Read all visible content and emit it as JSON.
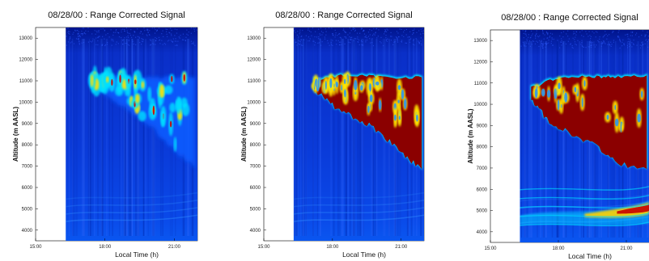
{
  "chart_data": [
    {
      "type": "heatmap",
      "title": "08/28/00 : Range Corrected Signal",
      "xlabel": "Local Time (h)",
      "ylabel": "Altitude (m AASL)",
      "x_ticks": [
        "15:00",
        "18:00",
        "21:00"
      ],
      "y_ticks": [
        4000,
        5000,
        6000,
        7000,
        8000,
        9000,
        10000,
        11000,
        12000,
        13000
      ],
      "xlim": [
        15,
        22
      ],
      "ylim": [
        3500,
        13500
      ],
      "data_start": 16.3,
      "colormap": "jet",
      "cloud": {
        "top": [
          [
            17.3,
            11200
          ],
          [
            18.5,
            11250
          ],
          [
            19.5,
            11200
          ],
          [
            20.5,
            11150
          ],
          [
            21.9,
            11200
          ]
        ],
        "bottom": [
          [
            17.3,
            10800
          ],
          [
            18.2,
            10200
          ],
          [
            19.0,
            9700
          ],
          [
            20.0,
            8800
          ],
          [
            21.0,
            7800
          ],
          [
            21.9,
            6900
          ]
        ]
      },
      "intensity": "low"
    },
    {
      "type": "heatmap",
      "title": "08/28/00 : Range Corrected Signal",
      "xlabel": "Local Time (h)",
      "ylabel": "Altitude (m AASL)",
      "x_ticks": [
        "15:00",
        "18:00",
        "21:00"
      ],
      "y_ticks": [
        4000,
        5000,
        6000,
        7000,
        8000,
        9000,
        10000,
        11000,
        12000,
        13000
      ],
      "xlim": [
        15,
        22
      ],
      "ylim": [
        3500,
        13500
      ],
      "data_start": 16.3,
      "colormap": "jet",
      "cloud": {
        "top": [
          [
            17.2,
            11100
          ],
          [
            18.5,
            11300
          ],
          [
            19.5,
            11250
          ],
          [
            20.5,
            11200
          ],
          [
            21.9,
            11200
          ]
        ],
        "bottom": [
          [
            17.2,
            10600
          ],
          [
            18.0,
            9900
          ],
          [
            19.0,
            9300
          ],
          [
            20.0,
            8700
          ],
          [
            21.0,
            7700
          ],
          [
            21.9,
            6900
          ]
        ]
      },
      "intensity": "medium"
    },
    {
      "type": "heatmap",
      "title": "08/28/00 : Range Corrected Signal",
      "xlabel": "Local Time (h)",
      "ylabel": "Altitude (m AASL)",
      "x_ticks": [
        "15:00",
        "18:00",
        "21:00"
      ],
      "y_ticks": [
        4000,
        5000,
        6000,
        7000,
        8000,
        9000,
        10000,
        11000,
        12000,
        13000
      ],
      "xlim": [
        15,
        22
      ],
      "ylim": [
        3500,
        13500
      ],
      "data_start": 16.3,
      "colormap": "jet",
      "cloud": {
        "top": [
          [
            16.8,
            10800
          ],
          [
            18.0,
            11300
          ],
          [
            19.5,
            11350
          ],
          [
            20.5,
            11300
          ],
          [
            21.9,
            11400
          ]
        ],
        "bottom": [
          [
            16.8,
            10300
          ],
          [
            17.5,
            9300
          ],
          [
            18.5,
            8700
          ],
          [
            19.5,
            8200
          ],
          [
            20.5,
            7300
          ],
          [
            21.9,
            7000
          ]
        ]
      },
      "intensity": "high",
      "low_layer": true
    }
  ]
}
